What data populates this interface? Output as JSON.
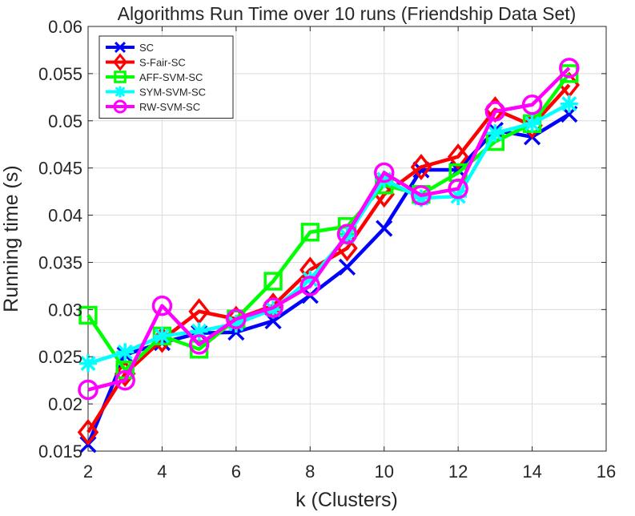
{
  "chart_data": {
    "type": "line",
    "title": "Algorithms Run Time over 10 runs (Friendship Data Set)",
    "xlabel": "k (Clusters)",
    "ylabel": "Running time (s)",
    "xlim": [
      2,
      16
    ],
    "ylim": [
      0.015,
      0.06
    ],
    "xticks": [
      2,
      4,
      6,
      8,
      10,
      12,
      14,
      16
    ],
    "yticks": [
      0.015,
      0.02,
      0.025,
      0.03,
      0.035,
      0.04,
      0.045,
      0.05,
      0.055,
      0.06
    ],
    "xtick_labels": [
      "2",
      "4",
      "6",
      "8",
      "10",
      "12",
      "14",
      "16"
    ],
    "ytick_labels": [
      "0.015",
      "0.02",
      "0.025",
      "0.03",
      "0.035",
      "0.04",
      "0.045",
      "0.05",
      "0.055",
      "0.06"
    ],
    "grid": true,
    "legend_position": "top-left",
    "x": [
      2,
      3,
      4,
      5,
      6,
      7,
      8,
      9,
      10,
      11,
      12,
      13,
      14,
      15
    ],
    "series": [
      {
        "name": "SC",
        "color": "#0000ff",
        "marker": "x",
        "values": [
          0.0157,
          0.0252,
          0.0265,
          0.0275,
          0.0276,
          0.0288,
          0.0315,
          0.0345,
          0.0386,
          0.0448,
          0.0448,
          0.049,
          0.0483,
          0.0507
        ]
      },
      {
        "name": "S-Fair-SC",
        "color": "#ff0000",
        "marker": "diamond",
        "values": [
          0.017,
          0.0232,
          0.0268,
          0.0298,
          0.029,
          0.0304,
          0.0342,
          0.0365,
          0.0422,
          0.0451,
          0.0462,
          0.0512,
          0.0495,
          0.0538
        ]
      },
      {
        "name": "AFF-SVM-SC",
        "color": "#00ff00",
        "marker": "square",
        "values": [
          0.0294,
          0.0236,
          0.0272,
          0.0258,
          0.029,
          0.033,
          0.0382,
          0.0388,
          0.0432,
          0.0422,
          0.0445,
          0.0478,
          0.0497,
          0.055
        ]
      },
      {
        "name": "SYM-SVM-SC",
        "color": "#00ffff",
        "marker": "asterisk",
        "values": [
          0.0243,
          0.0255,
          0.0272,
          0.0277,
          0.0285,
          0.03,
          0.0332,
          0.0378,
          0.0438,
          0.0418,
          0.042,
          0.0487,
          0.0497,
          0.0518
        ]
      },
      {
        "name": "RW-SVM-SC",
        "color": "#ff00ff",
        "marker": "circle",
        "values": [
          0.0215,
          0.0225,
          0.0304,
          0.0263,
          0.029,
          0.0302,
          0.0325,
          0.038,
          0.0445,
          0.0421,
          0.0428,
          0.051,
          0.0517,
          0.0556
        ]
      }
    ]
  }
}
